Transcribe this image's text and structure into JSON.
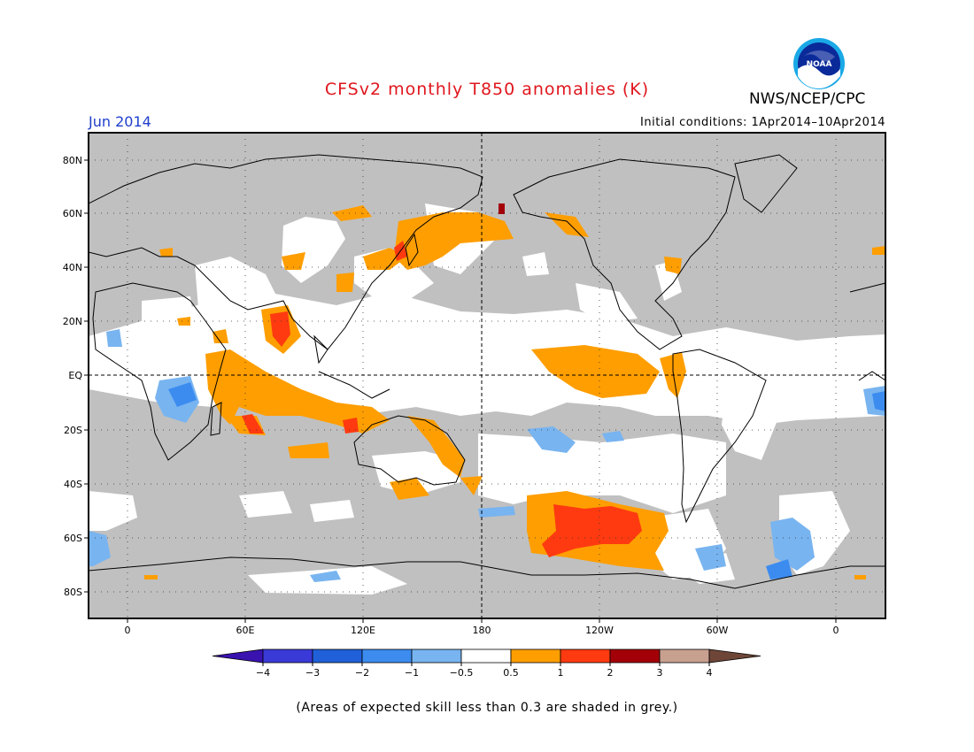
{
  "header": {
    "title": "CFSv2 monthly T850 anomalies (K)",
    "org": "NWS/NCEP/CPC",
    "month": "Jun 2014",
    "initial_conditions": "Initial conditions: 1Apr2014–10Apr2014",
    "logo_text": "NOAA"
  },
  "axes": {
    "lat_labels": [
      "80N",
      "60N",
      "40N",
      "20N",
      "EQ",
      "20S",
      "40S",
      "60S",
      "80S"
    ],
    "lon_labels": [
      "0",
      "60E",
      "120E",
      "180",
      "120W",
      "60W",
      "0"
    ]
  },
  "colorbar": {
    "labels": [
      "−4",
      "−3",
      "−2",
      "−1",
      "−0.5",
      "0.5",
      "1",
      "2",
      "3",
      "4"
    ],
    "colors": [
      "#3a12b0",
      "#3a3ad8",
      "#2060d8",
      "#3c8cf0",
      "#78b4f0",
      "#ffffff",
      "#ff9e00",
      "#ff3a10",
      "#a30008",
      "#c8a090",
      "#6e4638"
    ]
  },
  "colors": {
    "grey_low_skill": "#c0c0c0",
    "orange": "#ff9e00",
    "red": "#ff3a10",
    "blue": "#78b4f0",
    "dark_blue": "#3c8cf0"
  },
  "note": "(Areas of expected skill less than 0.3 are shaded in grey.)"
}
